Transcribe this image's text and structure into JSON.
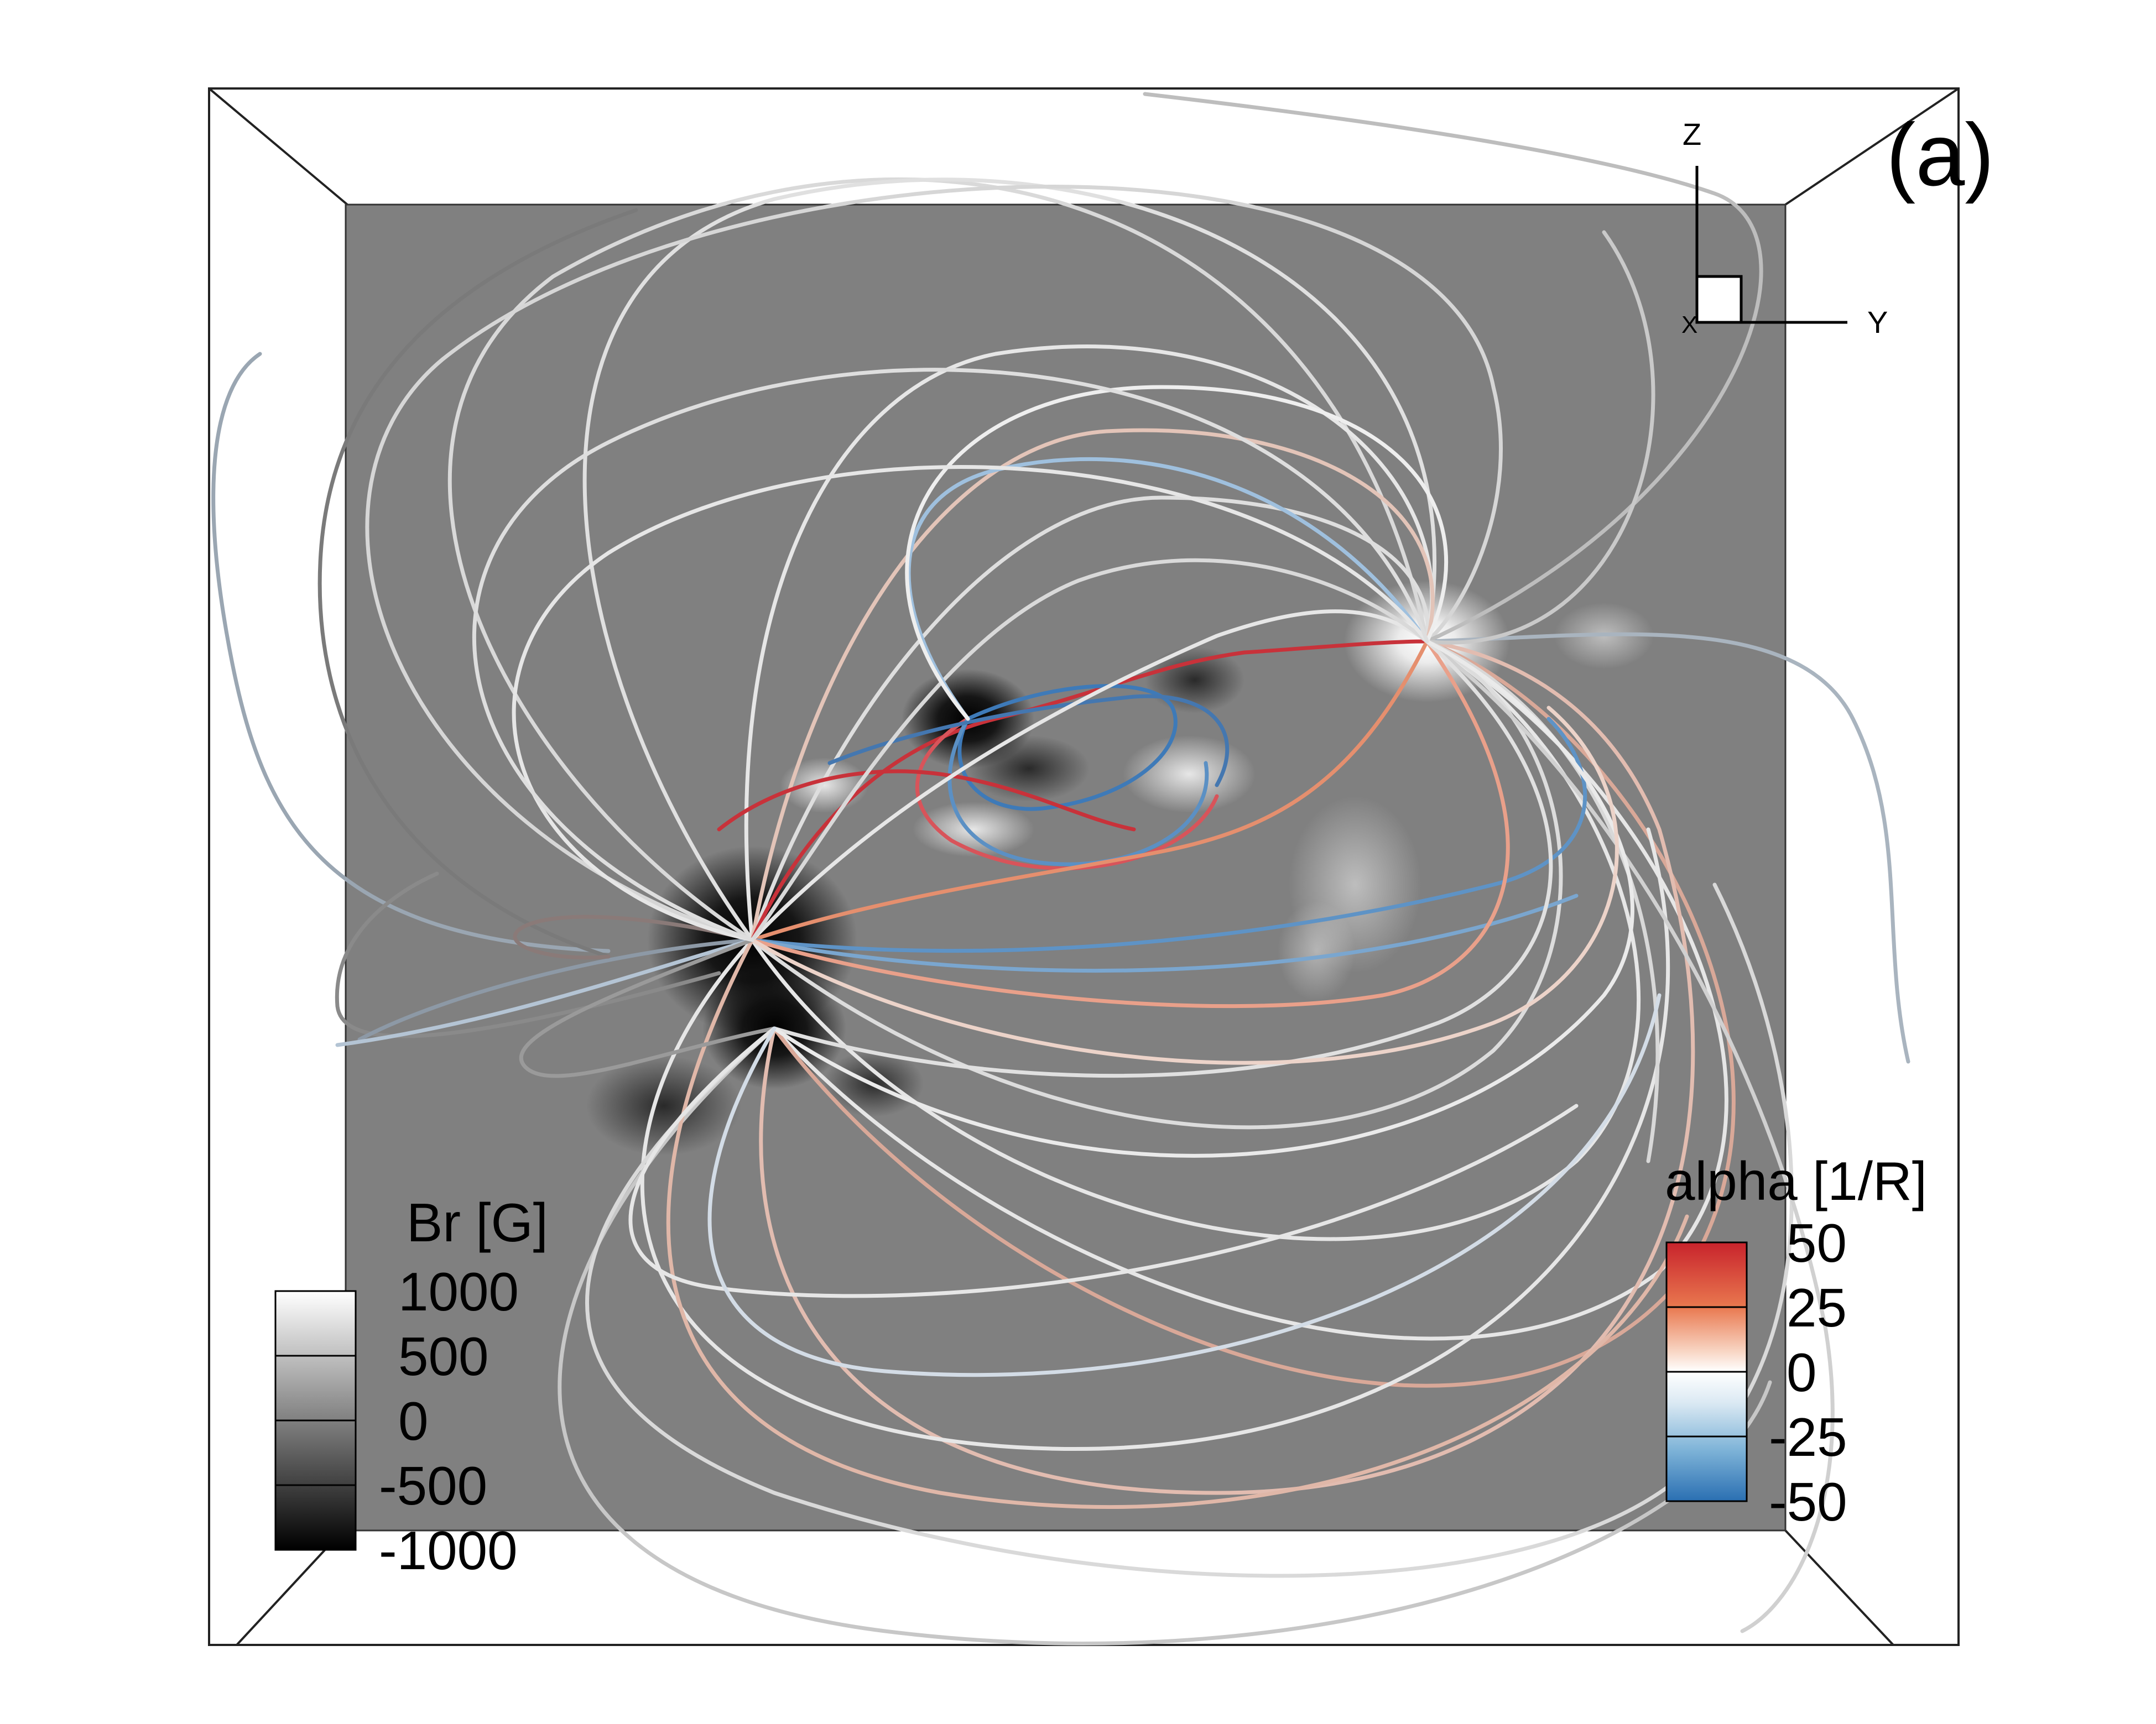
{
  "panel_label": "(a)",
  "axes_triad": {
    "z": "Z",
    "y": "Y",
    "x": "X"
  },
  "br_colorbar": {
    "title": "Br [G]",
    "ticks": [
      "1000",
      "500",
      "0",
      "-500",
      "-1000"
    ],
    "colors": [
      "#ffffff",
      "#000000"
    ]
  },
  "alpha_colorbar": {
    "title": "alpha [1/R]",
    "ticks": [
      "50",
      "25",
      "0",
      "-25",
      "-50"
    ],
    "colors": [
      "#c8232c",
      "#e9784f",
      "#f8d5c3",
      "#ffffff",
      "#dbe9f3",
      "#7fb4d8",
      "#2a6fb2"
    ]
  },
  "colors": {
    "magnetogram_background": "#808080",
    "field_line_neutral": "#e6e6e6",
    "field_line_positive": "#d8786a",
    "field_line_negative": "#6d9cc8",
    "box_edges": "#222222"
  }
}
